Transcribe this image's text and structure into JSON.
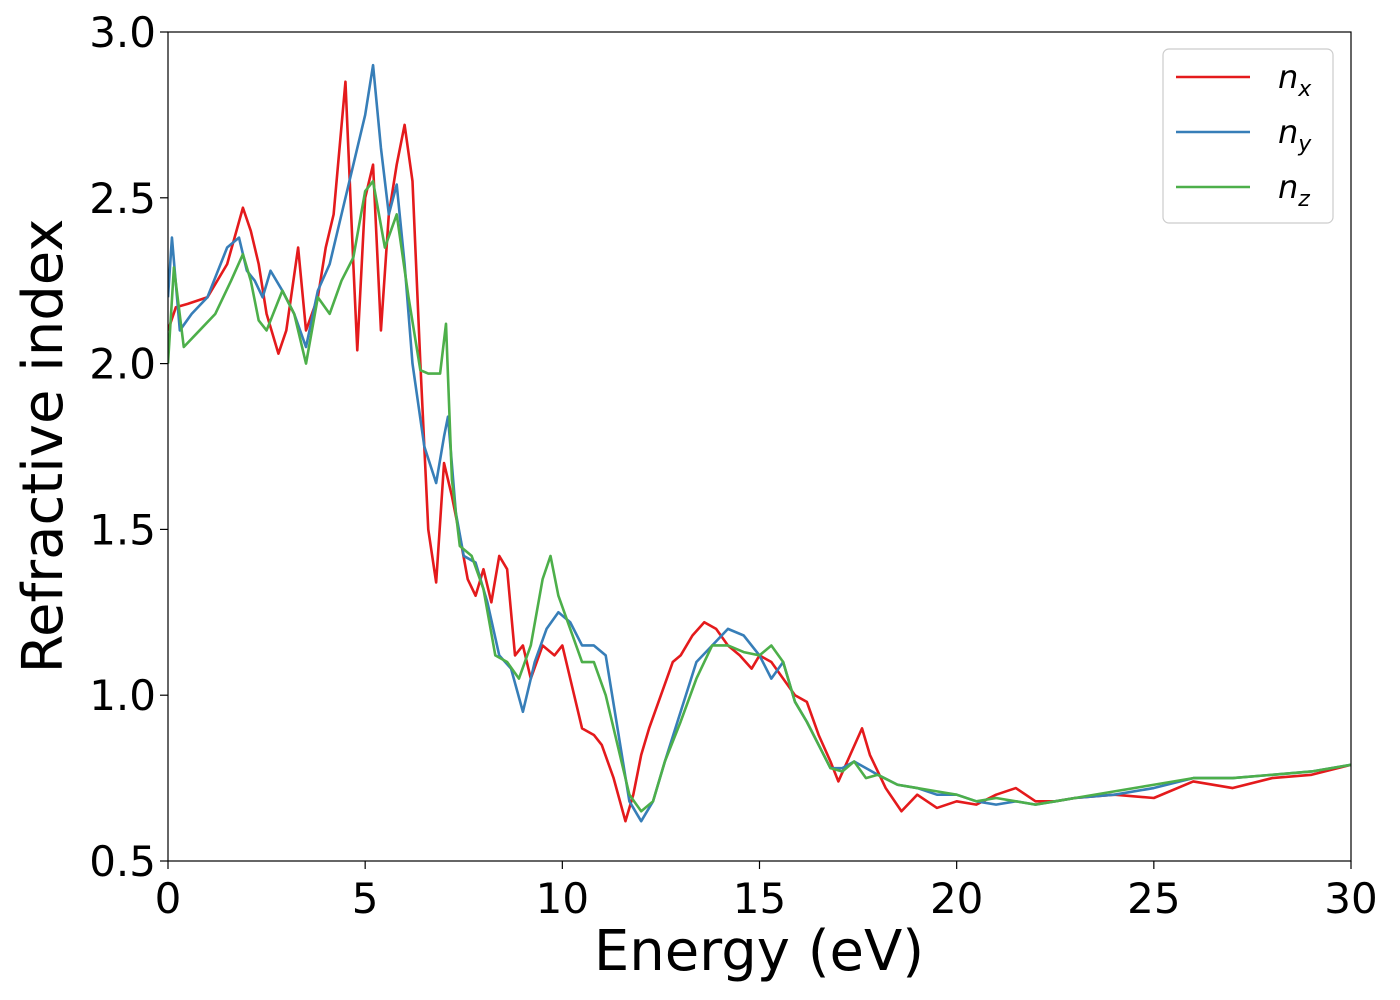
{
  "chart_data": {
    "type": "line",
    "xlabel": "Energy (eV)",
    "ylabel": "Refractive index",
    "xlim": [
      0,
      30
    ],
    "ylim": [
      0.5,
      3.0
    ],
    "xticks": [
      "0",
      "5",
      "10",
      "15",
      "20",
      "25",
      "30"
    ],
    "yticks": [
      "0.5",
      "1.0",
      "1.5",
      "2.0",
      "2.5",
      "3.0"
    ],
    "grid": false,
    "legend_position": "top-right",
    "series": [
      {
        "name": "n_x",
        "label_base": "n",
        "label_sub": "x",
        "color": "#e41a1c",
        "x": [
          0,
          0.2,
          0.5,
          1.0,
          1.5,
          1.9,
          2.1,
          2.3,
          2.5,
          2.8,
          3.0,
          3.3,
          3.5,
          3.8,
          4.0,
          4.2,
          4.5,
          4.7,
          4.8,
          5.0,
          5.2,
          5.4,
          5.6,
          5.8,
          6.0,
          6.2,
          6.4,
          6.6,
          6.8,
          7.0,
          7.2,
          7.4,
          7.6,
          7.8,
          8.0,
          8.2,
          8.4,
          8.6,
          8.8,
          9.0,
          9.2,
          9.5,
          9.8,
          10.0,
          10.2,
          10.5,
          10.8,
          11.0,
          11.3,
          11.6,
          11.8,
          12.0,
          12.2,
          12.5,
          12.8,
          13.0,
          13.3,
          13.6,
          13.9,
          14.2,
          14.5,
          14.8,
          15.0,
          15.3,
          15.6,
          15.9,
          16.2,
          16.5,
          16.8,
          17.0,
          17.3,
          17.6,
          17.8,
          18.2,
          18.6,
          19.0,
          19.5,
          20.0,
          20.5,
          21.0,
          21.5,
          22.0,
          22.5,
          23.0,
          24.0,
          25.0,
          26.0,
          27.0,
          28.0,
          29.0,
          30.0
        ],
        "y": [
          2.1,
          2.17,
          2.18,
          2.2,
          2.3,
          2.47,
          2.4,
          2.3,
          2.15,
          2.03,
          2.1,
          2.35,
          2.1,
          2.2,
          2.35,
          2.45,
          2.85,
          2.3,
          2.04,
          2.5,
          2.6,
          2.1,
          2.45,
          2.6,
          2.72,
          2.55,
          2.0,
          1.5,
          1.34,
          1.7,
          1.6,
          1.48,
          1.35,
          1.3,
          1.38,
          1.28,
          1.42,
          1.38,
          1.12,
          1.15,
          1.05,
          1.15,
          1.12,
          1.15,
          1.05,
          0.9,
          0.88,
          0.85,
          0.75,
          0.62,
          0.7,
          0.82,
          0.9,
          1.0,
          1.1,
          1.12,
          1.18,
          1.22,
          1.2,
          1.15,
          1.12,
          1.08,
          1.12,
          1.1,
          1.05,
          1.0,
          0.98,
          0.88,
          0.8,
          0.74,
          0.82,
          0.9,
          0.82,
          0.72,
          0.65,
          0.7,
          0.66,
          0.68,
          0.67,
          0.7,
          0.72,
          0.68,
          0.68,
          0.69,
          0.7,
          0.69,
          0.74,
          0.72,
          0.75,
          0.76,
          0.79
        ]
      },
      {
        "name": "n_y",
        "label_base": "n",
        "label_sub": "y",
        "color": "#377eb8",
        "x": [
          0,
          0.1,
          0.3,
          0.6,
          1.0,
          1.5,
          1.8,
          2.0,
          2.2,
          2.4,
          2.6,
          2.9,
          3.2,
          3.5,
          3.8,
          4.1,
          4.4,
          4.7,
          5.0,
          5.2,
          5.4,
          5.6,
          5.8,
          6.0,
          6.2,
          6.5,
          6.8,
          7.0,
          7.1,
          7.3,
          7.5,
          7.8,
          8.1,
          8.4,
          8.7,
          9.0,
          9.3,
          9.6,
          9.9,
          10.2,
          10.5,
          10.8,
          11.1,
          11.4,
          11.7,
          12.0,
          12.3,
          12.6,
          13.0,
          13.4,
          13.8,
          14.2,
          14.6,
          15.0,
          15.3,
          15.6,
          15.9,
          16.2,
          16.5,
          16.8,
          17.1,
          17.4,
          17.7,
          18.0,
          18.5,
          19.0,
          19.5,
          20.0,
          20.5,
          21.0,
          21.5,
          22.0,
          22.5,
          23.0,
          24.0,
          25.0,
          26.0,
          27.0,
          28.0,
          29.0,
          30.0
        ],
        "y": [
          2.2,
          2.38,
          2.1,
          2.15,
          2.2,
          2.35,
          2.38,
          2.28,
          2.25,
          2.2,
          2.28,
          2.22,
          2.15,
          2.05,
          2.22,
          2.3,
          2.45,
          2.6,
          2.75,
          2.9,
          2.65,
          2.45,
          2.54,
          2.3,
          2.0,
          1.75,
          1.64,
          1.78,
          1.84,
          1.55,
          1.42,
          1.4,
          1.28,
          1.12,
          1.08,
          0.95,
          1.1,
          1.2,
          1.25,
          1.22,
          1.15,
          1.15,
          1.12,
          0.9,
          0.68,
          0.62,
          0.68,
          0.8,
          0.95,
          1.1,
          1.15,
          1.2,
          1.18,
          1.12,
          1.05,
          1.1,
          0.98,
          0.92,
          0.85,
          0.78,
          0.78,
          0.8,
          0.78,
          0.76,
          0.73,
          0.72,
          0.7,
          0.7,
          0.68,
          0.67,
          0.68,
          0.67,
          0.68,
          0.69,
          0.7,
          0.72,
          0.75,
          0.75,
          0.76,
          0.77,
          0.79
        ]
      },
      {
        "name": "n_z",
        "label_base": "n",
        "label_sub": "z",
        "color": "#4daf4a",
        "x": [
          0,
          0.15,
          0.4,
          0.8,
          1.2,
          1.6,
          1.9,
          2.1,
          2.3,
          2.5,
          2.9,
          3.2,
          3.5,
          3.8,
          4.1,
          4.4,
          4.7,
          5.0,
          5.2,
          5.5,
          5.8,
          6.1,
          6.4,
          6.6,
          6.9,
          7.05,
          7.2,
          7.4,
          7.7,
          8.0,
          8.3,
          8.6,
          8.9,
          9.2,
          9.5,
          9.7,
          9.9,
          10.2,
          10.5,
          10.8,
          11.1,
          11.4,
          11.7,
          12.0,
          12.3,
          12.6,
          13.0,
          13.4,
          13.8,
          14.2,
          14.6,
          15.0,
          15.3,
          15.6,
          15.9,
          16.2,
          16.5,
          16.8,
          17.1,
          17.4,
          17.7,
          18.0,
          18.5,
          19.0,
          19.5,
          20.0,
          20.5,
          21.0,
          21.5,
          22.0,
          22.5,
          23.0,
          24.0,
          25.0,
          26.0,
          27.0,
          28.0,
          29.0,
          30.0
        ],
        "y": [
          2.0,
          2.29,
          2.05,
          2.1,
          2.15,
          2.25,
          2.33,
          2.25,
          2.13,
          2.1,
          2.22,
          2.15,
          2.0,
          2.2,
          2.15,
          2.25,
          2.32,
          2.52,
          2.55,
          2.35,
          2.45,
          2.2,
          1.98,
          1.97,
          1.97,
          2.12,
          1.65,
          1.45,
          1.42,
          1.32,
          1.12,
          1.1,
          1.05,
          1.15,
          1.35,
          1.42,
          1.3,
          1.2,
          1.1,
          1.1,
          1.0,
          0.85,
          0.7,
          0.65,
          0.68,
          0.8,
          0.92,
          1.05,
          1.15,
          1.15,
          1.13,
          1.12,
          1.15,
          1.1,
          0.98,
          0.92,
          0.85,
          0.78,
          0.77,
          0.8,
          0.75,
          0.76,
          0.73,
          0.72,
          0.71,
          0.7,
          0.68,
          0.69,
          0.68,
          0.67,
          0.68,
          0.69,
          0.71,
          0.73,
          0.75,
          0.75,
          0.76,
          0.77,
          0.79
        ]
      }
    ]
  }
}
